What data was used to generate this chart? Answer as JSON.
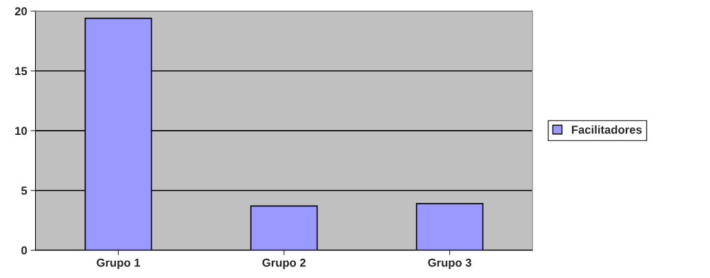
{
  "chart_data": {
    "type": "bar",
    "categories": [
      "Grupo 1",
      "Grupo 2",
      "Grupo 3"
    ],
    "series": [
      {
        "name": "Facilitadores",
        "color": "#9999ff",
        "values": [
          19.4,
          3.7,
          3.9
        ]
      }
    ],
    "ylim": [
      0,
      20
    ],
    "yticks": [
      0,
      5,
      10,
      15,
      20
    ],
    "grid": "y",
    "legend": "right"
  }
}
